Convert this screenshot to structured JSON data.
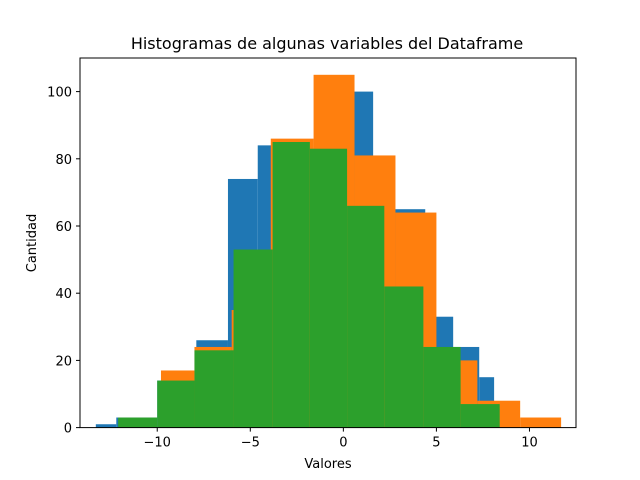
{
  "chart_data": {
    "type": "bar",
    "title": "Histogramas de algunas variables del Dataframe",
    "xlabel": "Valores",
    "ylabel": "Cantidad",
    "xlim": [
      -14.15,
      12.5
    ],
    "ylim": [
      0,
      110
    ],
    "xticks": [
      -10,
      -5,
      0,
      5,
      10
    ],
    "yticks": [
      0,
      20,
      40,
      60,
      80,
      100
    ],
    "grid": false,
    "legend": "none",
    "series": [
      {
        "color": "#1f77b4",
        "bins": [
          {
            "x0": -13.3,
            "x1": -12.2,
            "count": 1
          },
          {
            "x0": -12.2,
            "x1": -10.0,
            "count": 3
          },
          {
            "x0": -10.0,
            "x1": -7.9,
            "count": 14
          },
          {
            "x0": -7.9,
            "x1": -6.2,
            "count": 26
          },
          {
            "x0": -6.2,
            "x1": -4.6,
            "count": 74
          },
          {
            "x0": -4.6,
            "x1": -2.3,
            "count": 84
          },
          {
            "x0": -2.3,
            "x1": 0.0,
            "count": 83
          },
          {
            "x0": 0.0,
            "x1": 1.6,
            "count": 100
          },
          {
            "x0": 1.6,
            "x1": 4.4,
            "count": 65
          },
          {
            "x0": 4.4,
            "x1": 5.9,
            "count": 33
          },
          {
            "x0": 5.9,
            "x1": 7.3,
            "count": 24
          },
          {
            "x0": 7.3,
            "x1": 8.1,
            "count": 15
          }
        ]
      },
      {
        "color": "#ff7f0e",
        "bins": [
          {
            "x0": -9.8,
            "x1": -8.0,
            "count": 17
          },
          {
            "x0": -8.0,
            "x1": -6.0,
            "count": 24
          },
          {
            "x0": -6.0,
            "x1": -3.9,
            "count": 35
          },
          {
            "x0": -3.9,
            "x1": -1.6,
            "count": 86
          },
          {
            "x0": -1.6,
            "x1": 0.6,
            "count": 105
          },
          {
            "x0": 0.6,
            "x1": 2.8,
            "count": 81
          },
          {
            "x0": 2.8,
            "x1": 5.0,
            "count": 64
          },
          {
            "x0": 5.0,
            "x1": 7.2,
            "count": 20
          },
          {
            "x0": 7.2,
            "x1": 9.5,
            "count": 8
          },
          {
            "x0": 9.5,
            "x1": 11.7,
            "count": 3
          }
        ]
      },
      {
        "color": "#2ca02c",
        "bins": [
          {
            "x0": -12.1,
            "x1": -10.0,
            "count": 3
          },
          {
            "x0": -10.0,
            "x1": -8.0,
            "count": 14
          },
          {
            "x0": -8.0,
            "x1": -5.9,
            "count": 23
          },
          {
            "x0": -5.9,
            "x1": -3.8,
            "count": 53
          },
          {
            "x0": -3.8,
            "x1": -1.8,
            "count": 85
          },
          {
            "x0": -1.8,
            "x1": 0.2,
            "count": 83
          },
          {
            "x0": 0.2,
            "x1": 2.2,
            "count": 66
          },
          {
            "x0": 2.2,
            "x1": 4.3,
            "count": 42
          },
          {
            "x0": 4.3,
            "x1": 6.3,
            "count": 24
          },
          {
            "x0": 6.3,
            "x1": 8.4,
            "count": 7
          }
        ]
      }
    ]
  }
}
